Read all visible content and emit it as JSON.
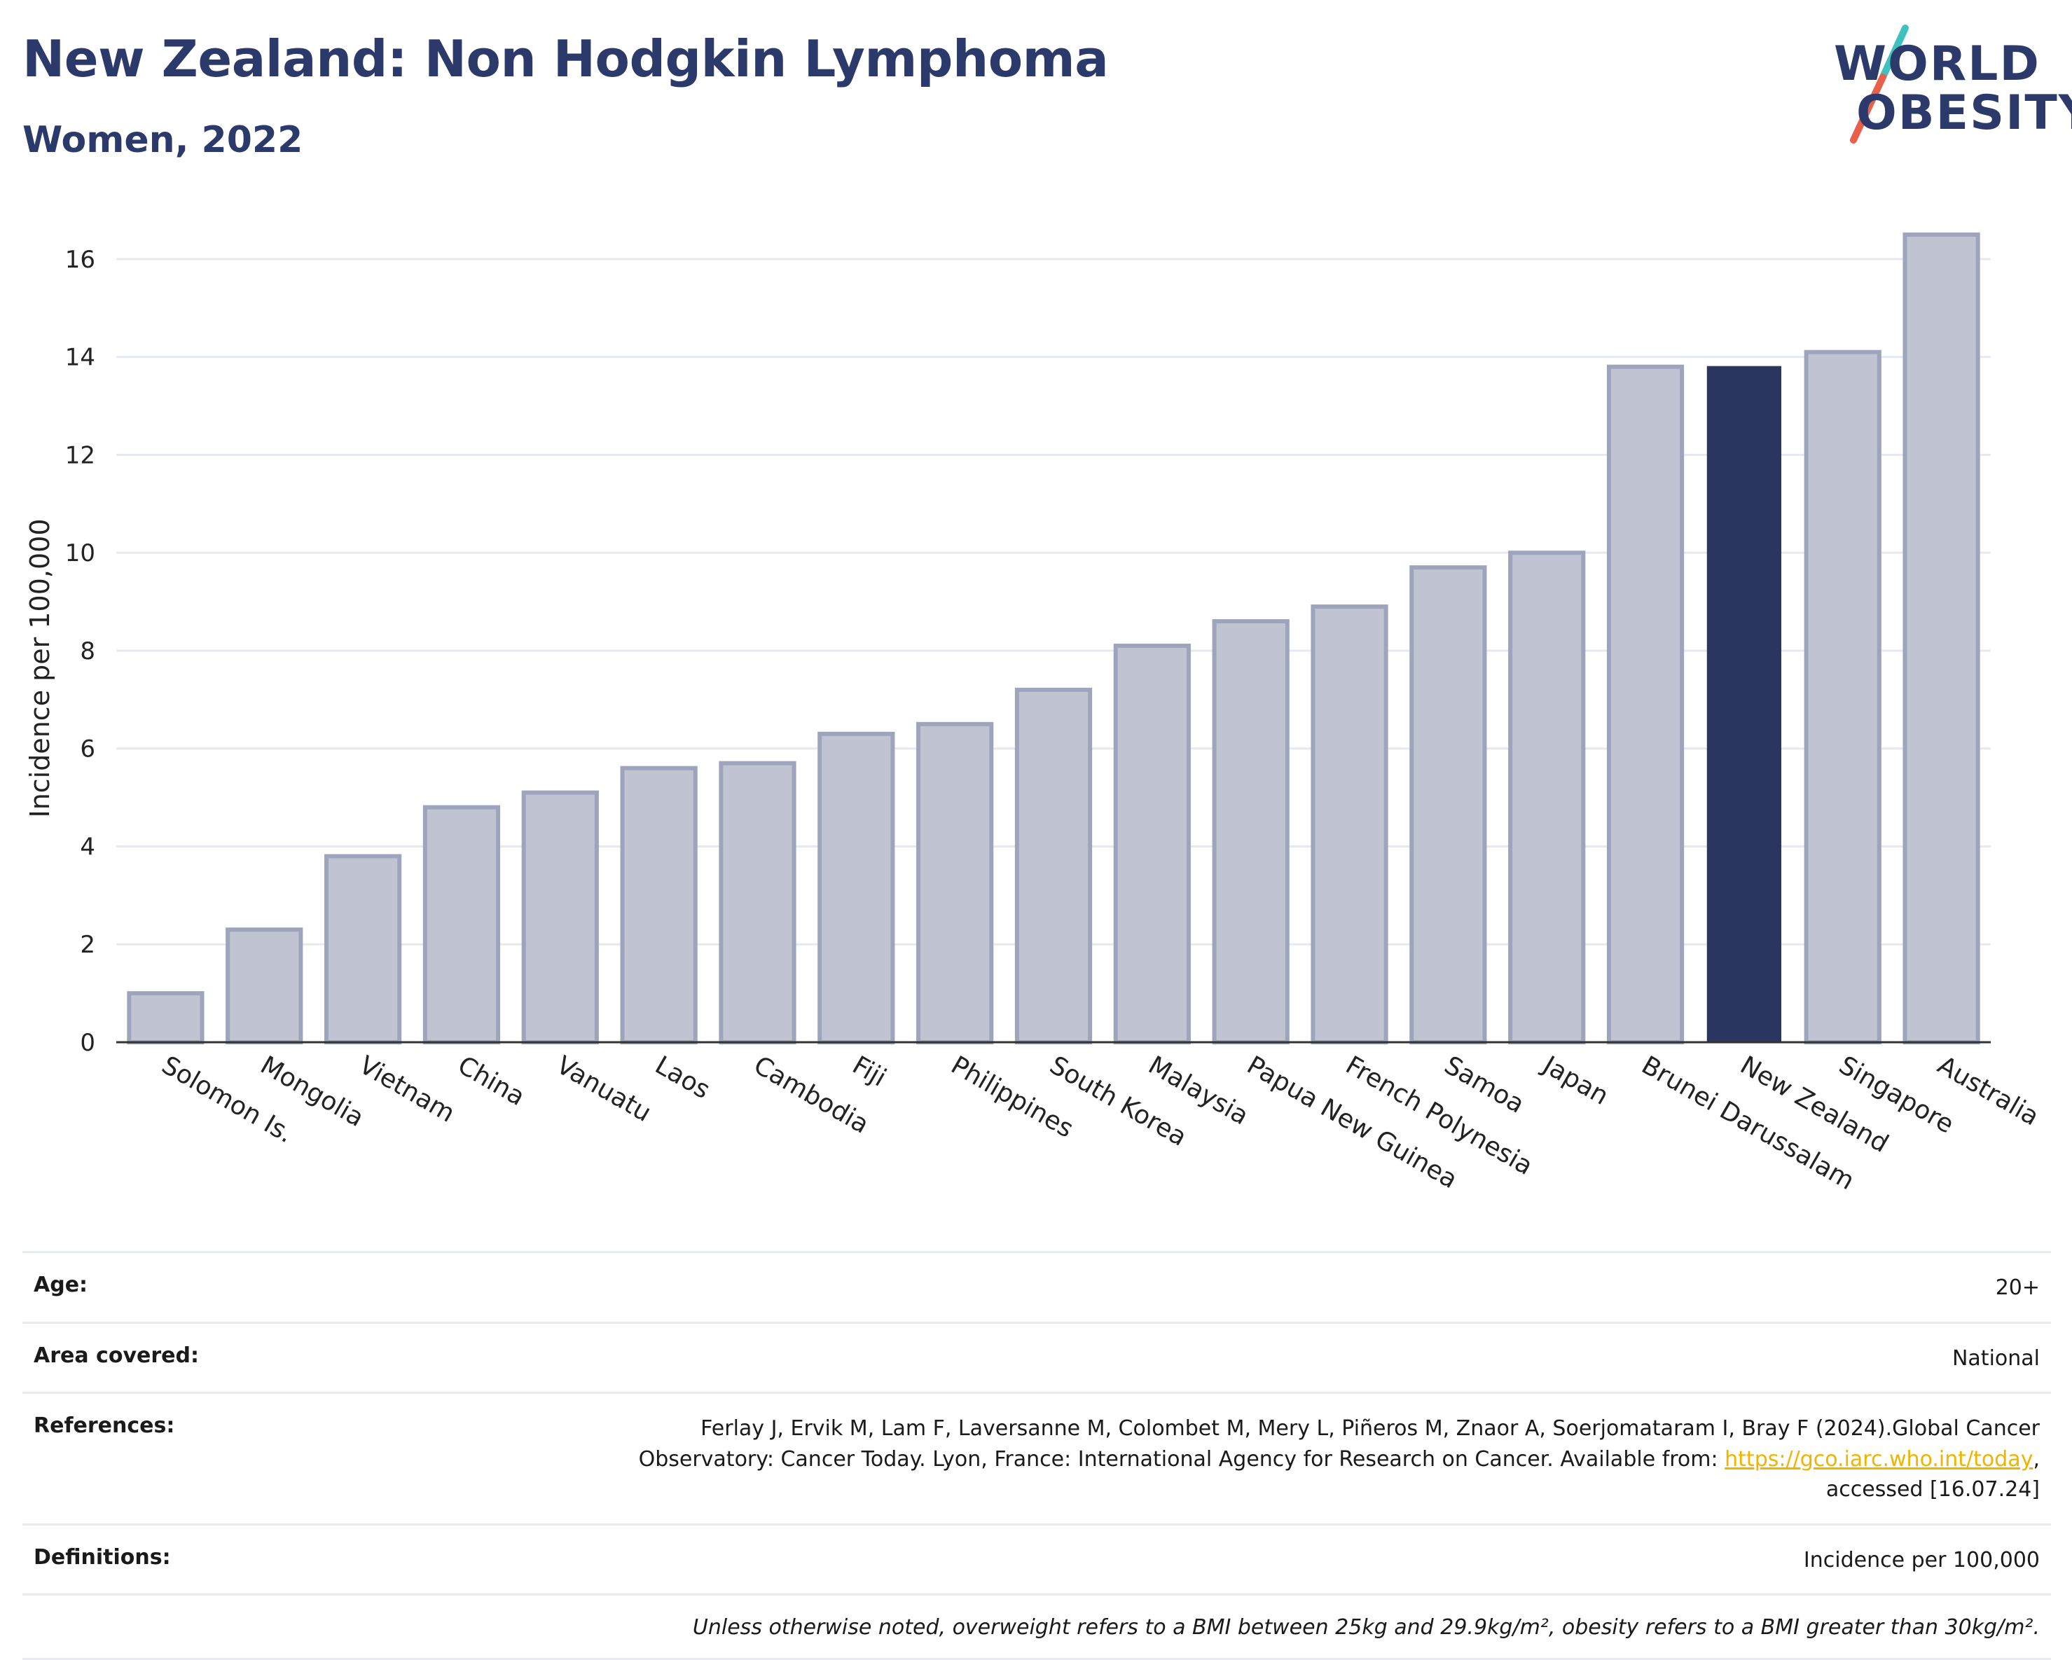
{
  "header": {
    "title": "New Zealand: Non Hodgkin Lymphoma",
    "subtitle": "Women, 2022"
  },
  "logo": {
    "line1": "WORLD",
    "line2": "OBESITY",
    "slash_color_top": "#3fc1c0",
    "slash_color_bottom": "#e8604c"
  },
  "chart_data": {
    "type": "bar",
    "ylabel": "Incidence per 100,000",
    "ylim": [
      0,
      17
    ],
    "yticks": [
      0,
      2,
      4,
      6,
      8,
      10,
      12,
      14,
      16
    ],
    "grid": true,
    "categories": [
      "Solomon Is.",
      "Mongolia",
      "Vietnam",
      "China",
      "Vanuatu",
      "Laos",
      "Cambodia",
      "Fiji",
      "Philippines",
      "South Korea",
      "Malaysia",
      "Papua New Guinea",
      "French Polynesia",
      "Samoa",
      "Japan",
      "Brunei Darussalam",
      "New Zealand",
      "Singapore",
      "Australia"
    ],
    "values": [
      1.0,
      2.3,
      3.8,
      4.8,
      5.1,
      5.6,
      5.7,
      6.3,
      6.5,
      7.2,
      8.1,
      8.6,
      8.9,
      9.7,
      10.0,
      13.8,
      13.8,
      14.1,
      16.5
    ],
    "highlight": "New Zealand",
    "colors": {
      "bar": "#c0c4d2",
      "bar_border": "#9ea4bb",
      "highlight": "#2b3660",
      "grid": "#e6e9f0",
      "axis": "#333333"
    }
  },
  "info": {
    "age_label": "Age:",
    "age_value": "20+",
    "area_label": "Area covered:",
    "area_value": "National",
    "references_label": "References:",
    "references_text_1": "Ferlay J, Ervik M, Lam F, Laversanne M, Colombet M, Mery L, Piñeros M, Znaor A, Soerjomataram I, Bray F (2024).Global Cancer",
    "references_text_2": "Observatory: Cancer Today. Lyon, France: International Agency for Research on Cancer. Available from: ",
    "references_link": "https://gco.iarc.who.int/today",
    "references_text_3": ",",
    "references_text_4": "accessed [16.07.24]",
    "definitions_label": "Definitions:",
    "definitions_value": "Incidence per 100,000",
    "note": "Unless otherwise noted, overweight refers to a BMI between 25kg and 29.9kg/m², obesity refers to a BMI greater than 30kg/m²."
  }
}
